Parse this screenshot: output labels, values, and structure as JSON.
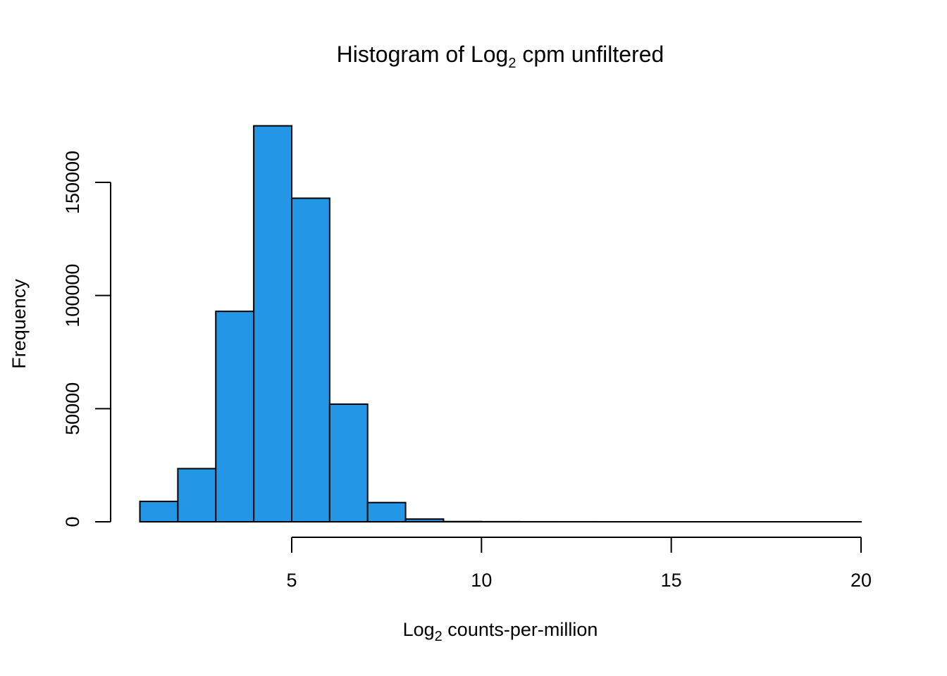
{
  "chart_data": {
    "type": "bar",
    "title_main": "Histogram of Log",
    "title_sub": "2",
    "title_rest": " cpm unfiltered",
    "xlabel_main": "Log",
    "xlabel_sub": "2",
    "xlabel_rest": " counts-per-million",
    "ylabel": "Frequency",
    "bin_edges": [
      1,
      2,
      3,
      4,
      5,
      6,
      7,
      8,
      9,
      10,
      11,
      12,
      13,
      14,
      15,
      16,
      17,
      18,
      19,
      20
    ],
    "values": [
      9000,
      23500,
      93000,
      175000,
      143000,
      52000,
      8500,
      1200,
      100,
      40,
      20,
      10,
      5,
      3,
      2,
      1,
      1,
      1,
      1
    ],
    "x_ticks": [
      "5",
      "10",
      "15",
      "20"
    ],
    "y_ticks": [
      "0",
      "50000",
      "100000",
      "150000"
    ],
    "xlim": [
      5,
      20
    ],
    "ylim": [
      0,
      150000
    ],
    "bar_color": "#2396E5",
    "grid": false,
    "legend": "none"
  }
}
